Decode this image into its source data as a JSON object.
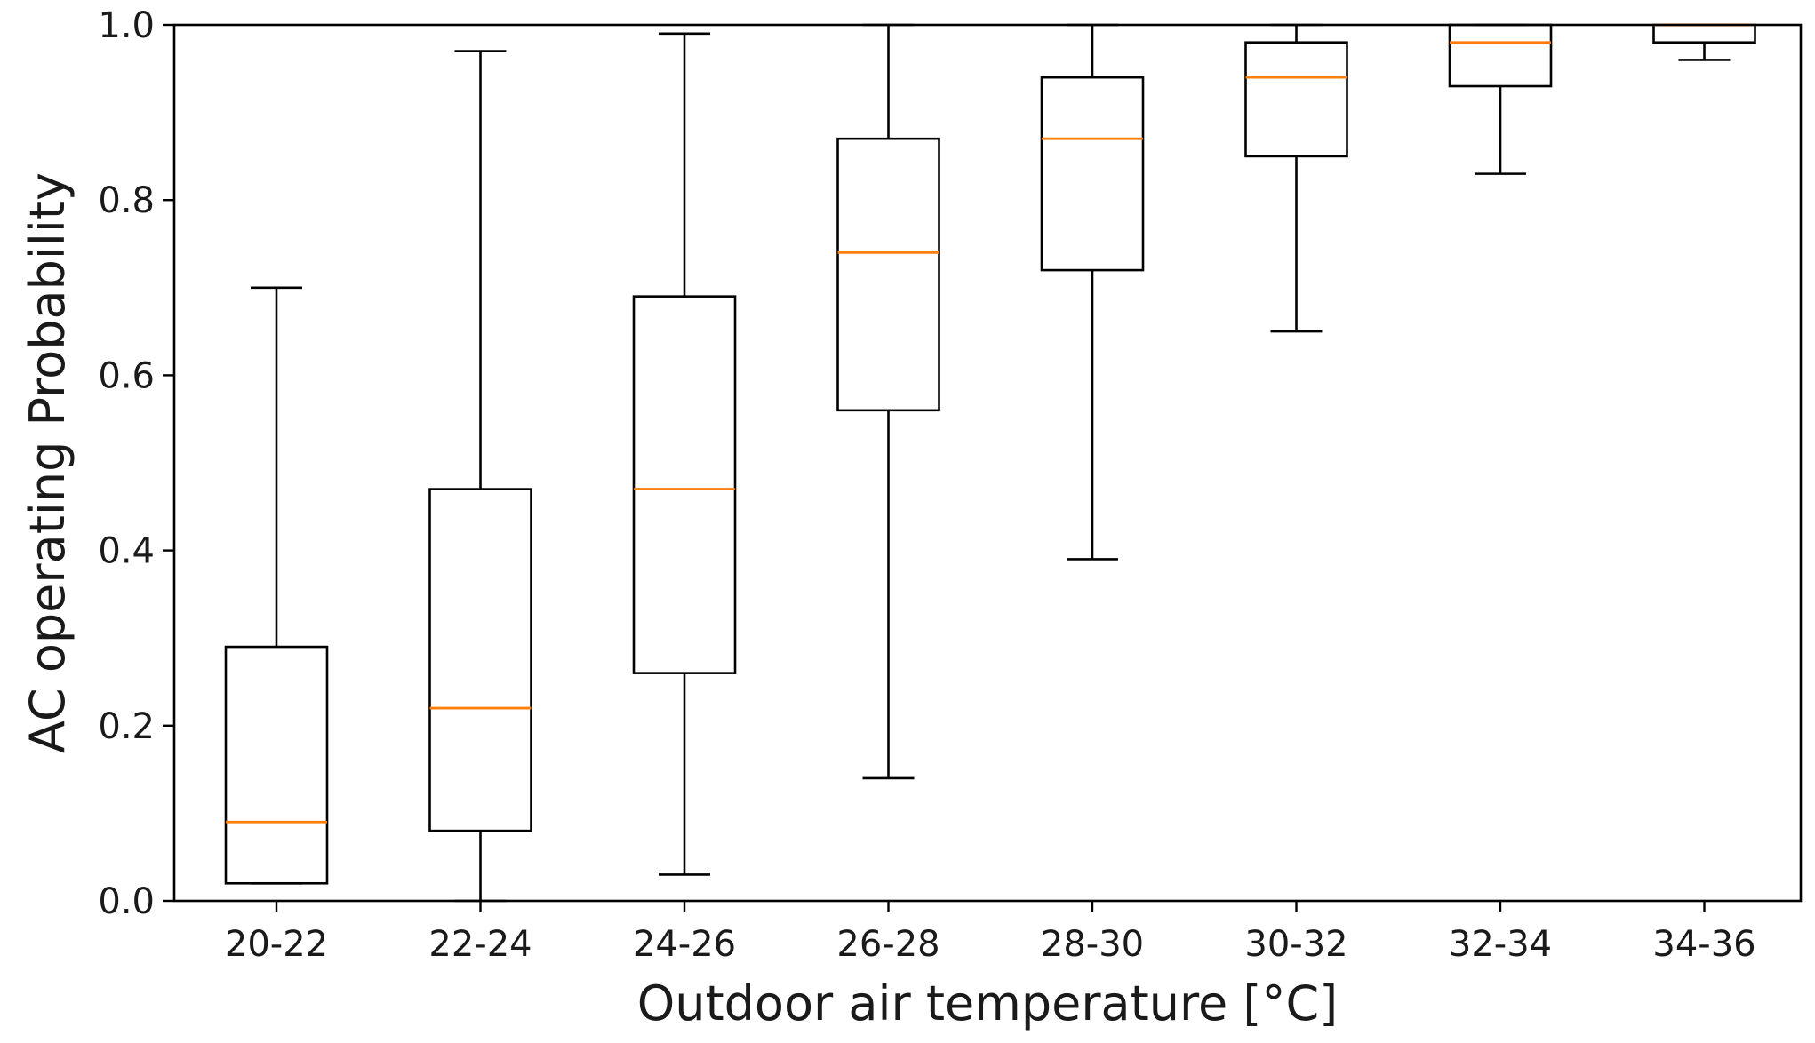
{
  "chart_data": {
    "type": "boxplot",
    "title": "",
    "xlabel": "Outdoor air temperature [°C]",
    "ylabel": "AC operating Probability",
    "ylim": [
      0.0,
      1.0
    ],
    "yticks": [
      "0.0",
      "0.2",
      "0.4",
      "0.6",
      "0.8",
      "1.0"
    ],
    "grid": false,
    "median_color": "#ff7f0e",
    "box_color": "#000000",
    "categories": [
      "20-22",
      "22-24",
      "24-26",
      "26-28",
      "28-30",
      "30-32",
      "32-34",
      "34-36"
    ],
    "boxes": [
      {
        "label": "20-22",
        "whisker_low": 0.02,
        "q1": 0.02,
        "median": 0.09,
        "q3": 0.29,
        "whisker_high": 0.7
      },
      {
        "label": "22-24",
        "whisker_low": 0.0,
        "q1": 0.08,
        "median": 0.22,
        "q3": 0.47,
        "whisker_high": 0.97
      },
      {
        "label": "24-26",
        "whisker_low": 0.03,
        "q1": 0.26,
        "median": 0.47,
        "q3": 0.69,
        "whisker_high": 0.99
      },
      {
        "label": "26-28",
        "whisker_low": 0.14,
        "q1": 0.56,
        "median": 0.74,
        "q3": 0.87,
        "whisker_high": 1.0
      },
      {
        "label": "28-30",
        "whisker_low": 0.39,
        "q1": 0.72,
        "median": 0.87,
        "q3": 0.94,
        "whisker_high": 1.0
      },
      {
        "label": "30-32",
        "whisker_low": 0.65,
        "q1": 0.85,
        "median": 0.94,
        "q3": 0.98,
        "whisker_high": 1.0
      },
      {
        "label": "32-34",
        "whisker_low": 0.83,
        "q1": 0.93,
        "median": 0.98,
        "q3": 1.0,
        "whisker_high": 1.0
      },
      {
        "label": "34-36",
        "whisker_low": 0.96,
        "q1": 0.98,
        "median": 1.0,
        "q3": 1.0,
        "whisker_high": 1.0
      }
    ]
  }
}
